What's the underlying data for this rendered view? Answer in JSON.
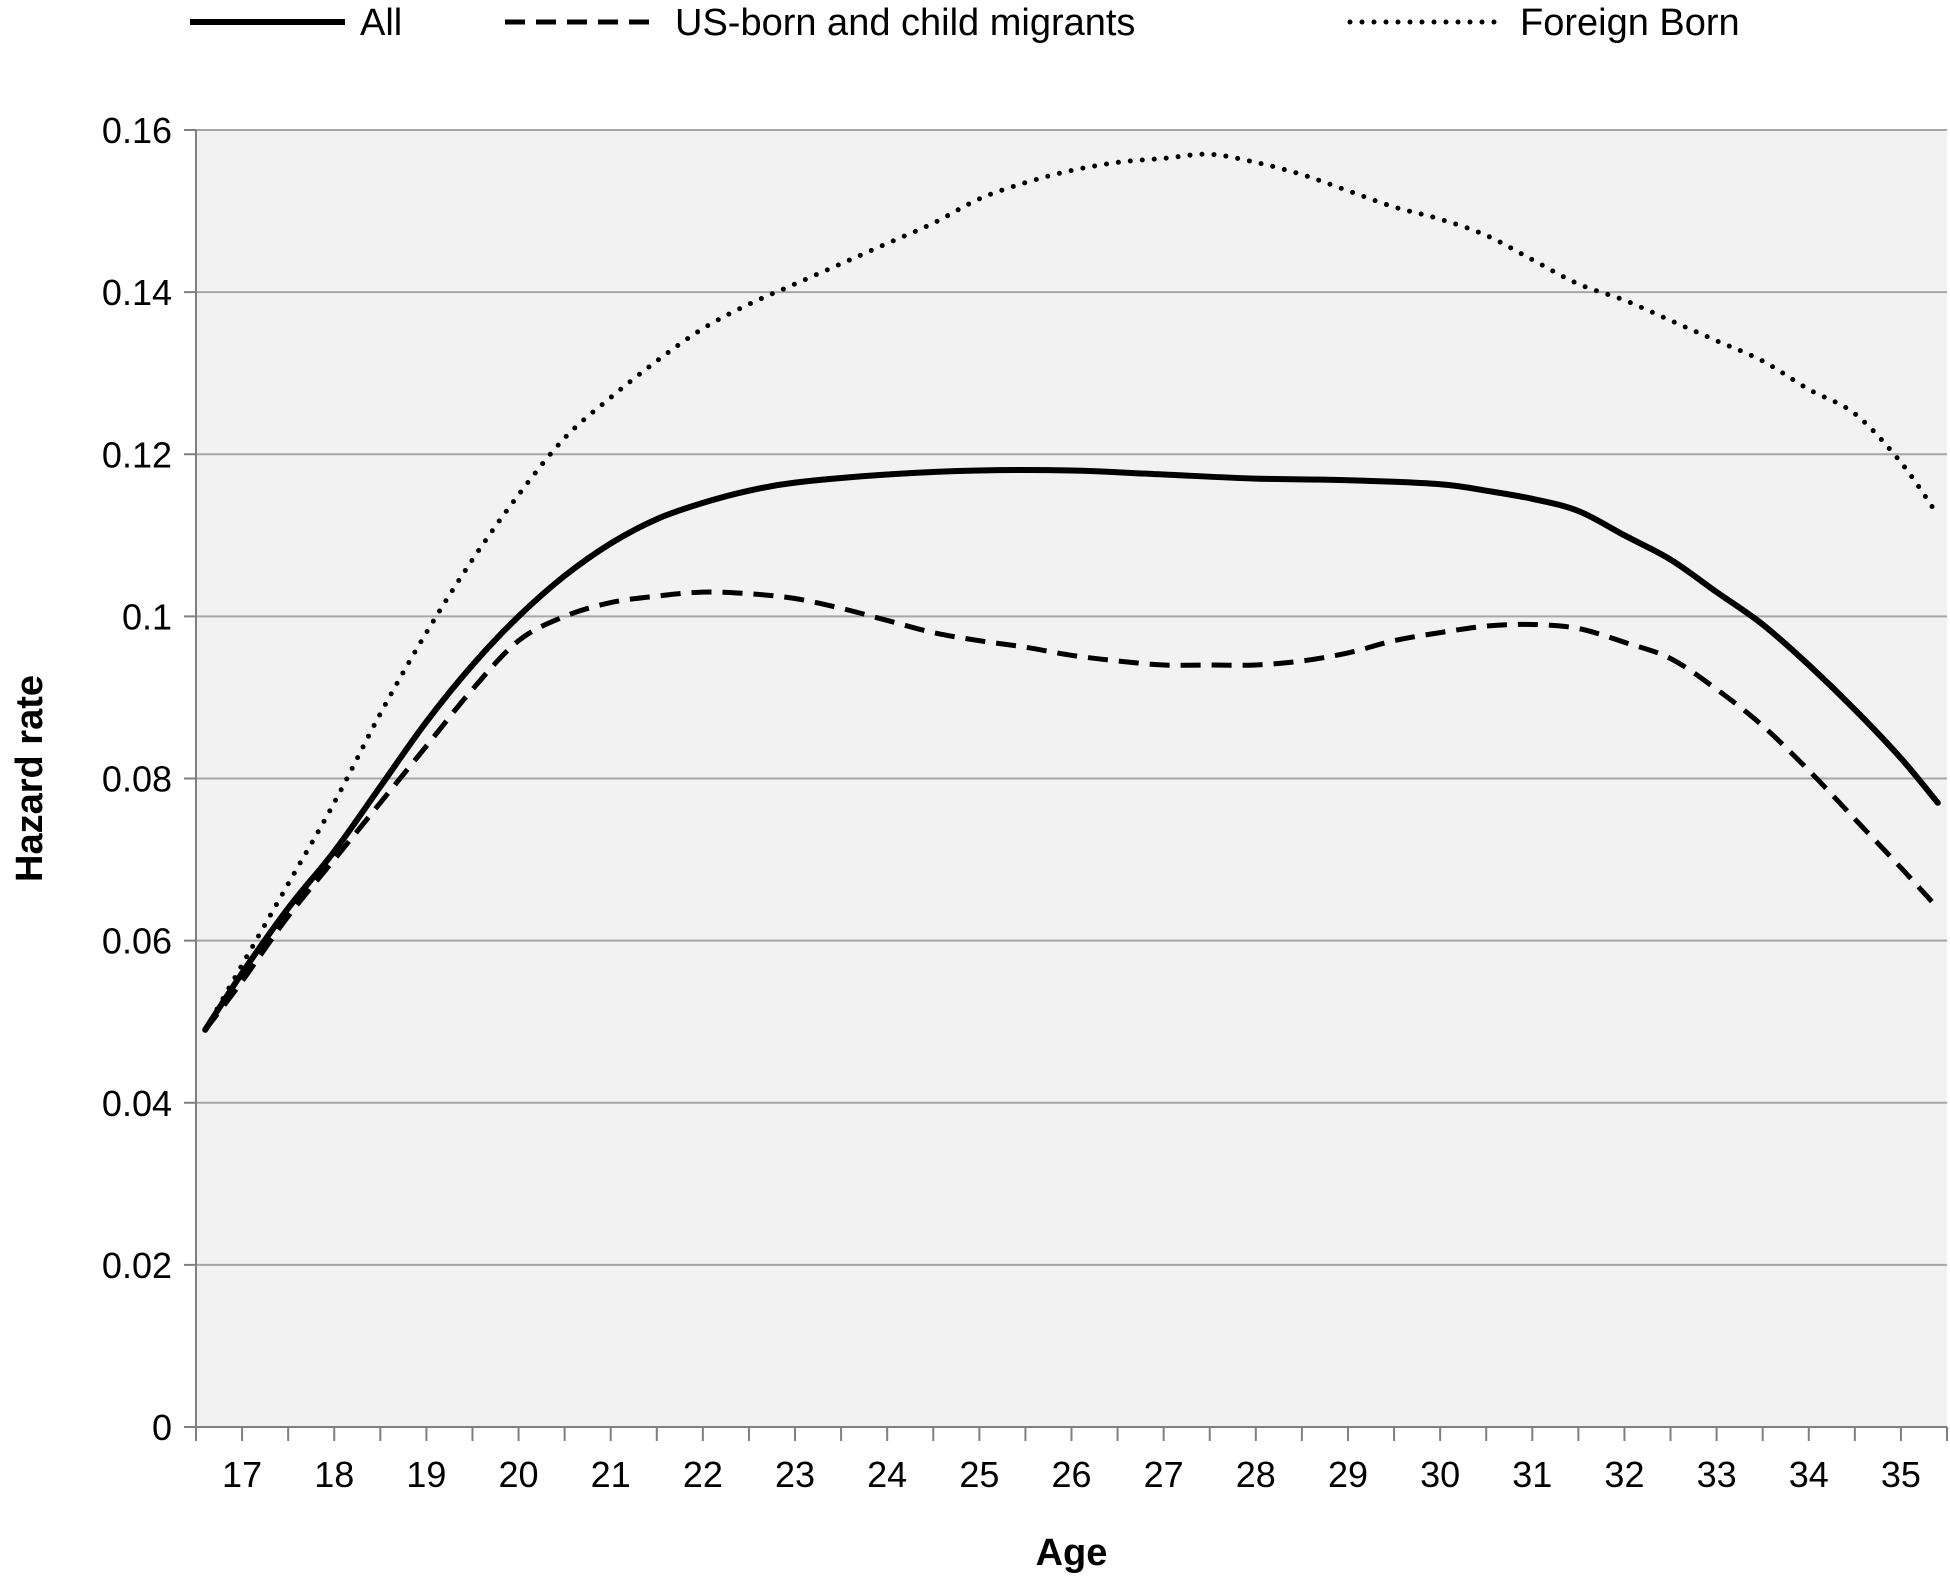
{
  "chart_data": {
    "type": "line",
    "xlabel": "Age",
    "ylabel": "Hazard rate",
    "xlim": [
      16.5,
      35.5
    ],
    "ylim": [
      0,
      0.16
    ],
    "yticks": [
      0,
      0.02,
      0.04,
      0.06,
      0.08,
      0.1,
      0.12,
      0.14,
      0.16
    ],
    "ytick_labels": [
      "0",
      "0.02",
      "0.04",
      "0.06",
      "0.08",
      "0.1",
      "0.12",
      "0.14",
      "0.16"
    ],
    "xticks": [
      17,
      18,
      19,
      20,
      21,
      22,
      23,
      24,
      25,
      26,
      27,
      28,
      29,
      30,
      31,
      32,
      33,
      34,
      35
    ],
    "xtick_labels": [
      "17",
      "18",
      "19",
      "20",
      "21",
      "22",
      "23",
      "24",
      "25",
      "26",
      "27",
      "28",
      "29",
      "30",
      "31",
      "32",
      "33",
      "34",
      "35"
    ],
    "grid": "horizontal",
    "legend_position": "top",
    "plot_background": "#f2f2f2",
    "series": [
      {
        "name": "All",
        "style": "solid",
        "color": "#000000",
        "x": [
          16.6,
          17,
          17.5,
          18,
          18.5,
          19,
          19.5,
          20,
          20.5,
          21,
          21.5,
          22,
          22.5,
          23,
          24,
          25,
          26,
          27,
          28,
          29,
          30,
          30.5,
          31,
          31.5,
          32,
          32.5,
          33,
          33.5,
          34,
          34.5,
          35,
          35.4
        ],
        "y": [
          0.049,
          0.056,
          0.064,
          0.071,
          0.079,
          0.087,
          0.094,
          0.1,
          0.105,
          0.109,
          0.112,
          0.114,
          0.1155,
          0.1165,
          0.1175,
          0.118,
          0.118,
          0.1175,
          0.117,
          0.1168,
          0.1163,
          0.1155,
          0.1145,
          0.113,
          0.11,
          0.107,
          0.103,
          0.099,
          0.094,
          0.0885,
          0.0825,
          0.077
        ]
      },
      {
        "name": "US-born and child migrants",
        "style": "dashed",
        "color": "#000000",
        "x": [
          16.6,
          17,
          17.5,
          18,
          18.5,
          19,
          19.5,
          20,
          20.5,
          21,
          21.5,
          22,
          22.5,
          23,
          23.5,
          24,
          24.5,
          25,
          25.5,
          26,
          26.5,
          27,
          27.5,
          28,
          28.5,
          29,
          29.5,
          30,
          30.5,
          31,
          31.5,
          32,
          32.5,
          33,
          33.5,
          34,
          34.5,
          35,
          35.4
        ],
        "y": [
          0.049,
          0.055,
          0.063,
          0.07,
          0.077,
          0.084,
          0.091,
          0.097,
          0.1,
          0.1017,
          0.1025,
          0.103,
          0.1028,
          0.1022,
          0.101,
          0.0995,
          0.098,
          0.097,
          0.0962,
          0.0952,
          0.0945,
          0.094,
          0.094,
          0.094,
          0.0945,
          0.0955,
          0.097,
          0.098,
          0.0988,
          0.099,
          0.0985,
          0.0968,
          0.0948,
          0.091,
          0.0865,
          0.081,
          0.075,
          0.069,
          0.064
        ]
      },
      {
        "name": "Foreign Born",
        "style": "dotted",
        "color": "#000000",
        "x": [
          16.6,
          17,
          17.5,
          18,
          18.5,
          19,
          19.5,
          20,
          20.5,
          21,
          21.5,
          22,
          22.5,
          23,
          23.5,
          24,
          24.5,
          25,
          25.5,
          26,
          26.5,
          27,
          27.5,
          28,
          28.5,
          29,
          29.5,
          30,
          30.5,
          31,
          31.5,
          32,
          32.5,
          33,
          33.5,
          34,
          34.5,
          35,
          35.4
        ],
        "y": [
          0.049,
          0.057,
          0.067,
          0.077,
          0.088,
          0.098,
          0.107,
          0.115,
          0.122,
          0.127,
          0.1315,
          0.1355,
          0.1385,
          0.141,
          0.1435,
          0.146,
          0.1485,
          0.1515,
          0.1535,
          0.155,
          0.156,
          0.1565,
          0.157,
          0.156,
          0.1545,
          0.1525,
          0.1505,
          0.149,
          0.147,
          0.144,
          0.141,
          0.139,
          0.1365,
          0.134,
          0.1315,
          0.128,
          0.125,
          0.119,
          0.1125
        ]
      }
    ]
  }
}
